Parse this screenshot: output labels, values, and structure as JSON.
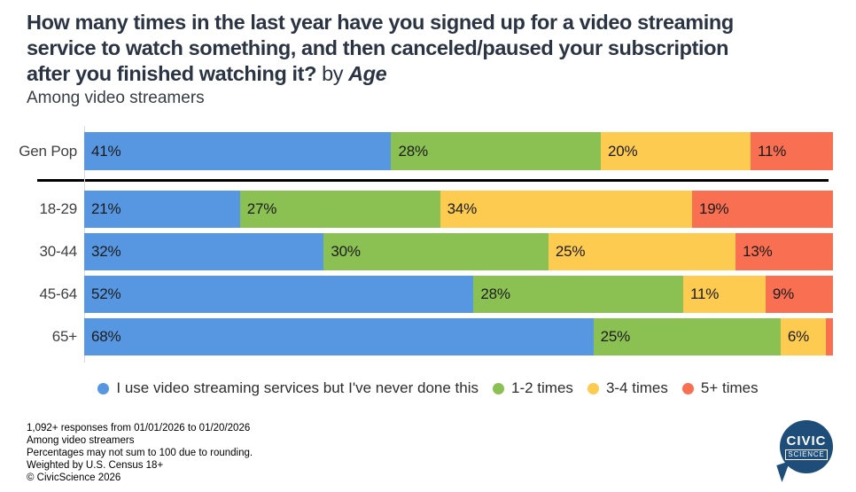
{
  "title": {
    "question": "How many times in the last year have you signed up for a video streaming\nservice to watch something, and then canceled/paused your subscription\nafter you finished watching it?",
    "by": "by",
    "group": "Age",
    "subtitle": "Among video streamers"
  },
  "chart_data": {
    "type": "bar",
    "orientation": "horizontal",
    "stacked": true,
    "unit": "%",
    "xlim": [
      0,
      100
    ],
    "grid": "left-baseline-only",
    "legend_position": "bottom",
    "categories": [
      "Gen Pop",
      "18-29",
      "30-44",
      "45-64",
      "65+"
    ],
    "series": [
      {
        "name": "I use video streaming services but I've never done this",
        "color": "#5797E1",
        "values": [
          41,
          21,
          32,
          52,
          68
        ]
      },
      {
        "name": "1-2 times",
        "color": "#8BC152",
        "values": [
          28,
          27,
          30,
          28,
          25
        ]
      },
      {
        "name": "3-4 times",
        "color": "#FCCB50",
        "values": [
          20,
          34,
          25,
          11,
          6
        ]
      },
      {
        "name": "5+ times",
        "color": "#F96F52",
        "values": [
          11,
          19,
          13,
          9,
          1
        ]
      }
    ],
    "value_labels": [
      [
        "41%",
        "28%",
        "20%",
        "11%"
      ],
      [
        "21%",
        "27%",
        "34%",
        "19%"
      ],
      [
        "32%",
        "30%",
        "25%",
        "13%"
      ],
      [
        "52%",
        "28%",
        "11%",
        "9%"
      ],
      [
        "68%",
        "25%",
        "6%",
        ""
      ]
    ],
    "divider_after_row": 0
  },
  "footer": {
    "lines": [
      "1,092+ responses from 01/01/2026 to 01/20/2026",
      "Among video streamers",
      "Percentages may not sum to 100 due to rounding.",
      "Weighted by U.S. Census 18+",
      "© CivicScience 2026"
    ]
  },
  "logo": {
    "line1": "CIVIC",
    "line2": "SCIENCE",
    "color": "#1D4D78"
  }
}
